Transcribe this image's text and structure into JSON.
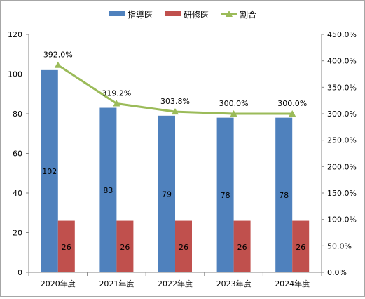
{
  "chart_data": {
    "type": "bar",
    "categories": [
      "2020年度",
      "2021年度",
      "2022年度",
      "2023年度",
      "2024年度"
    ],
    "series": [
      {
        "name": "指導医",
        "type": "bar",
        "axis": "left",
        "color": "#4f81bd",
        "values": [
          102,
          83,
          79,
          78,
          78
        ],
        "labels": [
          "102",
          "83",
          "79",
          "78",
          "78"
        ]
      },
      {
        "name": "研修医",
        "type": "bar",
        "axis": "left",
        "color": "#c0504d",
        "values": [
          26,
          26,
          26,
          26,
          26
        ],
        "labels": [
          "26",
          "26",
          "26",
          "26",
          "26"
        ]
      },
      {
        "name": "割合",
        "type": "line",
        "axis": "right",
        "color": "#9bbb59",
        "marker": "triangle",
        "values": [
          392.0,
          319.2,
          303.8,
          300.0,
          300.0
        ],
        "labels": [
          "392.0%",
          "319.2%",
          "303.8%",
          "300.0%",
          "300.0%"
        ]
      }
    ],
    "y_left": {
      "min": 0,
      "max": 120,
      "ticks": [
        "0",
        "20",
        "40",
        "60",
        "80",
        "100",
        "120"
      ]
    },
    "y_right": {
      "min": 0,
      "max": 450,
      "ticks": [
        "0.0%",
        "50.0%",
        "100.0%",
        "150.0%",
        "200.0%",
        "250.0%",
        "300.0%",
        "350.0%",
        "400.0%",
        "450.0%"
      ]
    },
    "legend": {
      "placement": "top-center"
    },
    "grid": false
  }
}
